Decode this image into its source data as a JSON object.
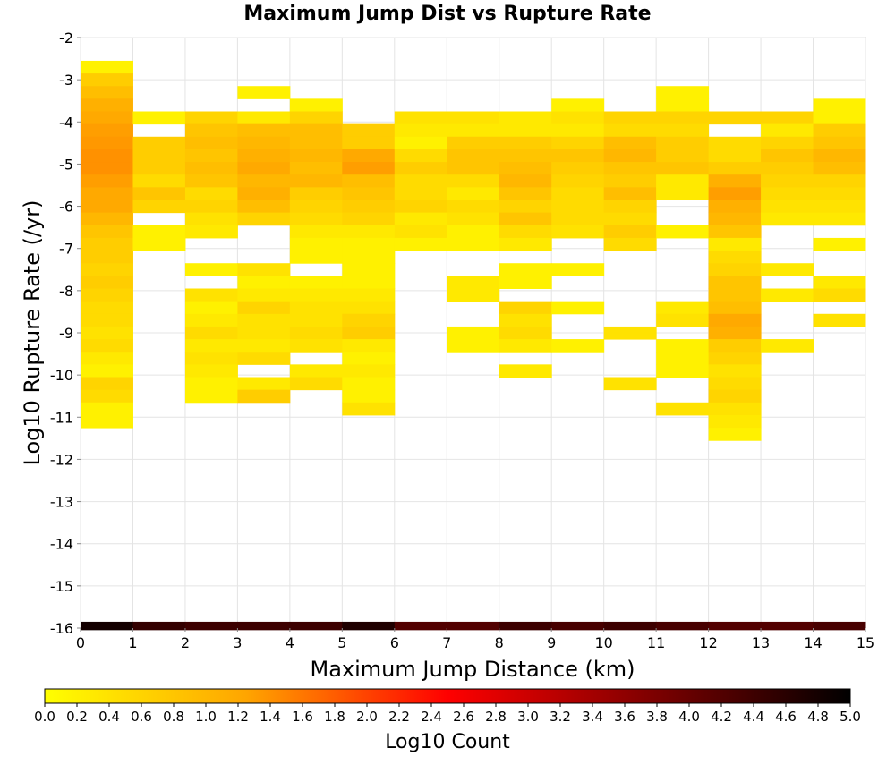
{
  "chart_data": {
    "type": "heatmap",
    "title": "Maximum Jump Dist vs Rupture Rate",
    "xlabel": "Maximum Jump Distance (km)",
    "ylabel": "Log10 Rupture Rate (/yr)",
    "xlim": [
      0,
      15
    ],
    "ylim": [
      -16,
      -2
    ],
    "x_ticks": [
      0,
      1,
      2,
      3,
      4,
      5,
      6,
      7,
      8,
      9,
      10,
      11,
      12,
      13,
      14,
      15
    ],
    "y_ticks": [
      -16,
      -15,
      -14,
      -13,
      -12,
      -11,
      -10,
      -9,
      -8,
      -7,
      -6,
      -5,
      -4,
      -3,
      -2
    ],
    "grid": true,
    "bin_width_x": 1,
    "bin_height_y": 0.3,
    "colorbar": {
      "label": "Log10 Count",
      "min": 0.0,
      "max": 5.0,
      "ticks": [
        "0.0",
        "0.2",
        "0.4",
        "0.6",
        "0.8",
        "1.0",
        "1.2",
        "1.4",
        "1.6",
        "1.8",
        "2.0",
        "2.2",
        "2.4",
        "2.6",
        "2.8",
        "3.0",
        "3.2",
        "3.4",
        "3.6",
        "3.8",
        "4.0",
        "4.2",
        "4.4",
        "4.6",
        "4.8",
        "5.0"
      ],
      "placement": "bottom",
      "colors": [
        "#ffff00",
        "#ffa500",
        "#ff0000",
        "#800000",
        "#000000"
      ]
    },
    "columns": [
      {
        "x": 0,
        "cells": [
          [
            -2.7,
            0.2
          ],
          [
            -3.0,
            0.7
          ],
          [
            -3.3,
            0.9
          ],
          [
            -3.6,
            1.1
          ],
          [
            -3.9,
            1.2
          ],
          [
            -4.2,
            1.3
          ],
          [
            -4.5,
            1.35
          ],
          [
            -4.8,
            1.4
          ],
          [
            -5.1,
            1.4
          ],
          [
            -5.4,
            1.3
          ],
          [
            -5.7,
            1.2
          ],
          [
            -6.0,
            1.2
          ],
          [
            -6.3,
            1.0
          ],
          [
            -6.6,
            0.8
          ],
          [
            -6.9,
            0.7
          ],
          [
            -7.2,
            0.7
          ],
          [
            -7.5,
            0.6
          ],
          [
            -7.8,
            0.7
          ],
          [
            -8.1,
            0.6
          ],
          [
            -8.4,
            0.5
          ],
          [
            -8.7,
            0.5
          ],
          [
            -9.0,
            0.4
          ],
          [
            -9.3,
            0.5
          ],
          [
            -9.6,
            0.3
          ],
          [
            -9.9,
            0.2
          ],
          [
            -10.2,
            0.6
          ],
          [
            -10.5,
            0.5
          ],
          [
            -10.8,
            0.2
          ],
          [
            -11.1,
            0.2
          ]
        ]
      },
      {
        "x": 1,
        "cells": [
          [
            -3.9,
            0.2
          ],
          [
            -4.5,
            0.7
          ],
          [
            -4.8,
            0.7
          ],
          [
            -5.1,
            0.7
          ],
          [
            -5.4,
            0.5
          ],
          [
            -5.7,
            0.8
          ],
          [
            -6.0,
            0.6
          ],
          [
            -6.6,
            0.2
          ],
          [
            -6.9,
            0.2
          ]
        ]
      },
      {
        "x": 2,
        "cells": [
          [
            -3.9,
            0.6
          ],
          [
            -4.2,
            0.8
          ],
          [
            -4.5,
            0.9
          ],
          [
            -4.8,
            0.8
          ],
          [
            -5.1,
            0.9
          ],
          [
            -5.4,
            0.8
          ],
          [
            -5.7,
            0.5
          ],
          [
            -6.0,
            0.6
          ],
          [
            -6.3,
            0.4
          ],
          [
            -6.6,
            0.3
          ],
          [
            -7.5,
            0.2
          ],
          [
            -8.1,
            0.4
          ],
          [
            -8.4,
            0.2
          ],
          [
            -8.7,
            0.3
          ],
          [
            -9.0,
            0.5
          ],
          [
            -9.3,
            0.3
          ],
          [
            -9.6,
            0.4
          ],
          [
            -9.9,
            0.3
          ],
          [
            -10.2,
            0.2
          ],
          [
            -10.5,
            0.2
          ]
        ]
      },
      {
        "x": 3,
        "cells": [
          [
            -3.3,
            0.2
          ],
          [
            -3.9,
            0.3
          ],
          [
            -4.2,
            0.9
          ],
          [
            -4.5,
            1.0
          ],
          [
            -4.8,
            1.1
          ],
          [
            -5.1,
            1.2
          ],
          [
            -5.4,
            1.0
          ],
          [
            -5.7,
            1.1
          ],
          [
            -6.0,
            0.9
          ],
          [
            -6.3,
            0.6
          ],
          [
            -7.5,
            0.4
          ],
          [
            -7.8,
            0.2
          ],
          [
            -8.1,
            0.3
          ],
          [
            -8.4,
            0.6
          ],
          [
            -8.7,
            0.4
          ],
          [
            -9.0,
            0.4
          ],
          [
            -9.3,
            0.3
          ],
          [
            -9.6,
            0.5
          ],
          [
            -10.2,
            0.3
          ],
          [
            -10.5,
            0.7
          ]
        ]
      },
      {
        "x": 4,
        "cells": [
          [
            -3.6,
            0.2
          ],
          [
            -3.9,
            0.6
          ],
          [
            -4.2,
            0.9
          ],
          [
            -4.5,
            0.9
          ],
          [
            -4.8,
            1.0
          ],
          [
            -5.1,
            0.9
          ],
          [
            -5.4,
            1.0
          ],
          [
            -5.7,
            0.7
          ],
          [
            -6.0,
            0.6
          ],
          [
            -6.3,
            0.5
          ],
          [
            -6.6,
            0.3
          ],
          [
            -6.9,
            0.2
          ],
          [
            -7.2,
            0.2
          ],
          [
            -7.8,
            0.2
          ],
          [
            -8.1,
            0.3
          ],
          [
            -8.4,
            0.4
          ],
          [
            -8.7,
            0.4
          ],
          [
            -9.0,
            0.5
          ],
          [
            -9.3,
            0.4
          ],
          [
            -9.9,
            0.3
          ],
          [
            -10.2,
            0.5
          ]
        ]
      },
      {
        "x": 5,
        "cells": [
          [
            -4.2,
            0.7
          ],
          [
            -4.5,
            0.7
          ],
          [
            -4.8,
            1.2
          ],
          [
            -5.1,
            1.3
          ],
          [
            -5.4,
            0.9
          ],
          [
            -5.7,
            0.8
          ],
          [
            -6.0,
            0.7
          ],
          [
            -6.3,
            0.6
          ],
          [
            -6.6,
            0.3
          ],
          [
            -6.9,
            0.2
          ],
          [
            -7.2,
            0.2
          ],
          [
            -7.5,
            0.2
          ],
          [
            -7.8,
            0.2
          ],
          [
            -8.1,
            0.3
          ],
          [
            -8.4,
            0.4
          ],
          [
            -8.7,
            0.6
          ],
          [
            -9.0,
            0.7
          ],
          [
            -9.3,
            0.3
          ],
          [
            -9.6,
            0.2
          ],
          [
            -9.9,
            0.3
          ],
          [
            -10.2,
            0.2
          ],
          [
            -10.5,
            0.2
          ],
          [
            -10.8,
            0.4
          ]
        ]
      },
      {
        "x": 6,
        "cells": [
          [
            -3.9,
            0.4
          ],
          [
            -4.2,
            0.3
          ],
          [
            -4.5,
            0.2
          ],
          [
            -4.8,
            0.5
          ],
          [
            -5.1,
            0.7
          ],
          [
            -5.4,
            0.5
          ],
          [
            -5.7,
            0.5
          ],
          [
            -6.0,
            0.6
          ],
          [
            -6.3,
            0.3
          ],
          [
            -6.6,
            0.4
          ],
          [
            -6.9,
            0.2
          ]
        ]
      },
      {
        "x": 7,
        "cells": [
          [
            -3.9,
            0.4
          ],
          [
            -4.2,
            0.3
          ],
          [
            -4.5,
            0.7
          ],
          [
            -4.8,
            0.8
          ],
          [
            -5.1,
            0.8
          ],
          [
            -5.4,
            0.5
          ],
          [
            -5.7,
            0.3
          ],
          [
            -6.0,
            0.5
          ],
          [
            -6.3,
            0.4
          ],
          [
            -6.6,
            0.2
          ],
          [
            -6.9,
            0.2
          ],
          [
            -7.8,
            0.3
          ],
          [
            -8.1,
            0.3
          ],
          [
            -9.0,
            0.2
          ],
          [
            -9.3,
            0.2
          ]
        ]
      },
      {
        "x": 8,
        "cells": [
          [
            -3.9,
            0.3
          ],
          [
            -4.2,
            0.3
          ],
          [
            -4.5,
            0.7
          ],
          [
            -4.8,
            0.8
          ],
          [
            -5.1,
            0.9
          ],
          [
            -5.4,
            1.0
          ],
          [
            -5.7,
            0.8
          ],
          [
            -6.0,
            0.6
          ],
          [
            -6.3,
            0.8
          ],
          [
            -6.6,
            0.5
          ],
          [
            -6.9,
            0.3
          ],
          [
            -7.5,
            0.2
          ],
          [
            -7.8,
            0.2
          ],
          [
            -8.4,
            0.6
          ],
          [
            -8.7,
            0.4
          ],
          [
            -9.0,
            0.5
          ],
          [
            -9.3,
            0.3
          ],
          [
            -9.9,
            0.3
          ]
        ]
      },
      {
        "x": 9,
        "cells": [
          [
            -3.6,
            0.2
          ],
          [
            -3.9,
            0.4
          ],
          [
            -4.2,
            0.3
          ],
          [
            -4.5,
            0.6
          ],
          [
            -4.8,
            0.8
          ],
          [
            -5.1,
            0.7
          ],
          [
            -5.4,
            0.6
          ],
          [
            -5.7,
            0.5
          ],
          [
            -6.0,
            0.5
          ],
          [
            -6.3,
            0.5
          ],
          [
            -6.6,
            0.4
          ],
          [
            -7.5,
            0.2
          ],
          [
            -8.4,
            0.2
          ],
          [
            -9.3,
            0.2
          ]
        ]
      },
      {
        "x": 10,
        "cells": [
          [
            -3.9,
            0.6
          ],
          [
            -4.2,
            0.5
          ],
          [
            -4.5,
            0.9
          ],
          [
            -4.8,
            1.0
          ],
          [
            -5.1,
            0.8
          ],
          [
            -5.4,
            0.7
          ],
          [
            -5.7,
            0.9
          ],
          [
            -6.0,
            0.6
          ],
          [
            -6.3,
            0.5
          ],
          [
            -6.6,
            0.7
          ],
          [
            -6.9,
            0.5
          ],
          [
            -9.0,
            0.4
          ],
          [
            -10.2,
            0.4
          ]
        ]
      },
      {
        "x": 11,
        "cells": [
          [
            -3.3,
            0.2
          ],
          [
            -3.6,
            0.2
          ],
          [
            -3.9,
            0.6
          ],
          [
            -4.2,
            0.5
          ],
          [
            -4.5,
            0.7
          ],
          [
            -4.8,
            0.7
          ],
          [
            -5.1,
            0.8
          ],
          [
            -5.4,
            0.3
          ],
          [
            -5.7,
            0.3
          ],
          [
            -6.6,
            0.2
          ],
          [
            -8.4,
            0.3
          ],
          [
            -8.7,
            0.4
          ],
          [
            -9.3,
            0.2
          ],
          [
            -9.6,
            0.2
          ],
          [
            -9.9,
            0.2
          ],
          [
            -10.8,
            0.4
          ]
        ]
      },
      {
        "x": 12,
        "cells": [
          [
            -3.9,
            0.6
          ],
          [
            -4.5,
            0.5
          ],
          [
            -4.8,
            0.5
          ],
          [
            -5.1,
            0.7
          ],
          [
            -5.4,
            1.1
          ],
          [
            -5.7,
            1.3
          ],
          [
            -6.0,
            1.1
          ],
          [
            -6.3,
            1.0
          ],
          [
            -6.6,
            0.8
          ],
          [
            -6.9,
            0.3
          ],
          [
            -7.2,
            0.5
          ],
          [
            -7.5,
            0.6
          ],
          [
            -7.8,
            0.8
          ],
          [
            -8.1,
            0.8
          ],
          [
            -8.4,
            0.9
          ],
          [
            -8.7,
            1.2
          ],
          [
            -9.0,
            1.1
          ],
          [
            -9.3,
            0.7
          ],
          [
            -9.6,
            0.6
          ],
          [
            -9.9,
            0.4
          ],
          [
            -10.2,
            0.5
          ],
          [
            -10.5,
            0.6
          ],
          [
            -10.8,
            0.4
          ],
          [
            -11.1,
            0.3
          ],
          [
            -11.4,
            0.2
          ]
        ]
      },
      {
        "x": 13,
        "cells": [
          [
            -3.9,
            0.6
          ],
          [
            -4.2,
            0.3
          ],
          [
            -4.5,
            0.6
          ],
          [
            -4.8,
            0.8
          ],
          [
            -5.1,
            0.7
          ],
          [
            -5.4,
            0.6
          ],
          [
            -5.7,
            0.5
          ],
          [
            -6.0,
            0.4
          ],
          [
            -6.3,
            0.3
          ],
          [
            -7.5,
            0.3
          ],
          [
            -8.1,
            0.3
          ],
          [
            -9.3,
            0.3
          ]
        ]
      },
      {
        "x": 14,
        "cells": [
          [
            -3.6,
            0.2
          ],
          [
            -3.9,
            0.2
          ],
          [
            -4.2,
            0.7
          ],
          [
            -4.5,
            0.8
          ],
          [
            -4.8,
            1.0
          ],
          [
            -5.1,
            0.9
          ],
          [
            -5.4,
            0.6
          ],
          [
            -5.7,
            0.5
          ],
          [
            -6.0,
            0.4
          ],
          [
            -6.3,
            0.3
          ],
          [
            -6.9,
            0.2
          ],
          [
            -7.8,
            0.3
          ],
          [
            -8.1,
            0.5
          ],
          [
            -8.7,
            0.4
          ]
        ]
      }
    ],
    "baseline_row": {
      "y": -16,
      "note": "",
      "values": [
        4.8,
        4.5,
        4.4,
        4.4,
        4.4,
        4.7,
        4.2,
        4.2,
        4.4,
        4.3,
        4.4,
        4.3,
        4.2,
        4.2,
        4.3
      ]
    }
  }
}
